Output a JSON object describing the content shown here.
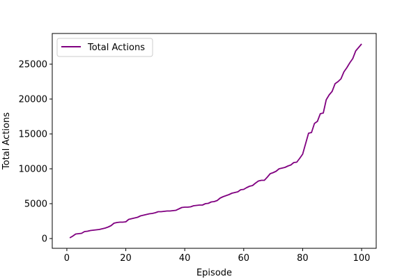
{
  "chart_data": {
    "type": "line",
    "title": "",
    "xlabel": "Episode",
    "ylabel": "Total Actions",
    "xlim": [
      -4.95,
      104.95
    ],
    "ylim": [
      -1400,
      29400
    ],
    "xticks": [
      0,
      20,
      40,
      60,
      80,
      100
    ],
    "yticks": [
      0,
      5000,
      10000,
      15000,
      20000,
      25000
    ],
    "grid": false,
    "legend_position": "top-left",
    "series": [
      {
        "name": "Total Actions",
        "color": "#800080",
        "x": [
          1,
          2,
          3,
          4,
          5,
          6,
          7,
          8,
          9,
          10,
          11,
          12,
          13,
          14,
          15,
          16,
          17,
          18,
          19,
          20,
          21,
          22,
          23,
          24,
          25,
          26,
          27,
          28,
          29,
          30,
          31,
          32,
          33,
          34,
          35,
          36,
          37,
          38,
          39,
          40,
          41,
          42,
          43,
          44,
          45,
          46,
          47,
          48,
          49,
          50,
          51,
          52,
          53,
          54,
          55,
          56,
          57,
          58,
          59,
          60,
          61,
          62,
          63,
          64,
          65,
          66,
          67,
          68,
          69,
          70,
          71,
          72,
          73,
          74,
          75,
          76,
          77,
          78,
          79,
          80,
          81,
          82,
          83,
          84,
          85,
          86,
          87,
          88,
          89,
          90,
          91,
          92,
          93,
          94,
          95,
          96,
          97,
          98,
          99,
          100
        ],
        "y": [
          100,
          350,
          650,
          700,
          750,
          1000,
          1050,
          1150,
          1200,
          1250,
          1300,
          1400,
          1500,
          1650,
          1850,
          2200,
          2300,
          2350,
          2350,
          2400,
          2750,
          2850,
          2950,
          3050,
          3250,
          3350,
          3450,
          3550,
          3600,
          3700,
          3850,
          3850,
          3900,
          3950,
          3950,
          4000,
          4050,
          4250,
          4450,
          4500,
          4500,
          4550,
          4700,
          4750,
          4800,
          4800,
          5000,
          5050,
          5250,
          5300,
          5450,
          5800,
          6000,
          6150,
          6300,
          6500,
          6600,
          6700,
          7000,
          7050,
          7300,
          7500,
          7600,
          7950,
          8250,
          8350,
          8350,
          8800,
          9300,
          9450,
          9650,
          10000,
          10100,
          10200,
          10400,
          10550,
          10900,
          10950,
          11500,
          12100,
          13600,
          15100,
          15200,
          16500,
          16800,
          17900,
          18000,
          19900,
          20600,
          21100,
          22200,
          22500,
          22900,
          23900,
          24500,
          25200,
          25800,
          26900,
          27400,
          27900
        ]
      }
    ]
  }
}
